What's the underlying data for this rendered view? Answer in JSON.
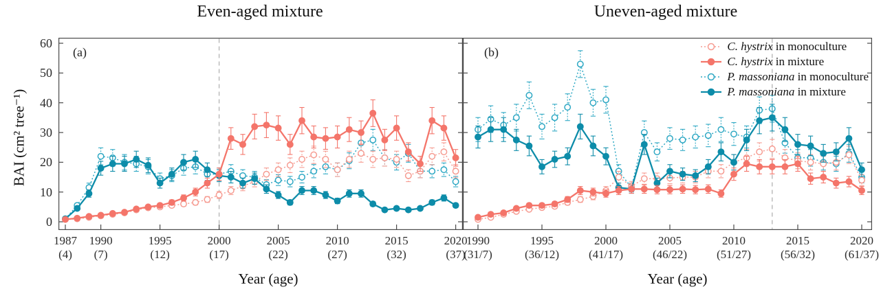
{
  "chart_data": {
    "type": "line",
    "title_y": "BAI (cm² tree⁻¹)",
    "x_axis_title": "Year (age)",
    "y_axis": {
      "label": "BAI (cm² tree⁻¹)",
      "ticks": [
        0,
        10,
        20,
        30,
        40,
        50,
        60
      ],
      "min": 0,
      "max": 60,
      "grid": false
    },
    "colors": {
      "ch_mono": "#f69c92",
      "ch_mix": "#f4756a",
      "pm_mono": "#2ea8c4",
      "pm_mix": "#0d8ca9",
      "dashed_line": "#b3b3b3",
      "frame": "#4a4a4a"
    },
    "legend": [
      {
        "key": "ch_mono",
        "species": "C. hystrix",
        "rest": " in monoculture",
        "marker": "open",
        "line": "dotted"
      },
      {
        "key": "ch_mix",
        "species": "C. hystrix",
        "rest": " in mixture",
        "marker": "filled",
        "line": "solid"
      },
      {
        "key": "pm_mono",
        "species": "P. massoniana",
        "rest": " in monoculture",
        "marker": "open",
        "line": "dotted"
      },
      {
        "key": "pm_mix",
        "species": "P. massoniana",
        "rest": " in mixture",
        "marker": "filled",
        "line": "solid"
      }
    ],
    "legend_position": "top-right",
    "panels": [
      {
        "id": "a",
        "letter": "(a)",
        "title": "Even-aged mixture",
        "dashed_line_year": 2000,
        "start_year": 1987,
        "x_ticks": [
          {
            "year": "1987",
            "age": "(4)"
          },
          {
            "year": "1990",
            "age": "(7)"
          },
          {
            "year": "1995",
            "age": "(12)"
          },
          {
            "year": "2000",
            "age": "(17)"
          },
          {
            "year": "2005",
            "age": "(22)"
          },
          {
            "year": "2010",
            "age": "(27)"
          },
          {
            "year": "2015",
            "age": "(32)"
          },
          {
            "year": "2020",
            "age": "(37)"
          }
        ],
        "series": [
          {
            "key": "pm_mono",
            "marker": "open",
            "line": "dotted",
            "values": [
              1.0,
              5.5,
              11.5,
              22.0,
              21.5,
              20.0,
              19.5,
              18.5,
              14.5,
              15.5,
              18.0,
              18.5,
              16.0,
              16.0,
              17.0,
              15.5,
              15.0,
              12.5,
              14.0,
              13.5,
              15.0,
              17.0,
              18.5,
              17.5,
              20.5,
              26.5,
              27.5,
              21.5,
              20.0,
              23.0,
              17.0,
              17.0,
              17.5,
              13.5
            ]
          },
          {
            "key": "ch_mono",
            "marker": "open",
            "line": "dotted",
            "values": [
              0.8,
              1.0,
              1.5,
              2.0,
              2.5,
              3.0,
              4.0,
              4.7,
              5.0,
              5.5,
              6.0,
              6.5,
              7.5,
              9.0,
              10.5,
              12.0,
              13.5,
              16.0,
              17.5,
              19.0,
              21.0,
              22.5,
              21.0,
              17.5,
              21.0,
              23.0,
              21.0,
              21.5,
              21.0,
              15.5,
              17.0,
              22.0,
              23.5,
              17.0
            ]
          },
          {
            "key": "pm_mix",
            "marker": "filled",
            "line": "solid",
            "values": [
              1.0,
              4.5,
              9.5,
              18.0,
              19.5,
              19.5,
              21.0,
              19.0,
              13.0,
              16.0,
              20.0,
              21.0,
              17.5,
              15.5,
              15.0,
              13.0,
              14.5,
              11.0,
              9.0,
              6.5,
              10.5,
              10.5,
              9.0,
              7.0,
              9.5,
              9.5,
              6.0,
              4.0,
              4.5,
              4.0,
              4.5,
              6.5,
              8.0,
              5.5
            ]
          },
          {
            "key": "ch_mix",
            "marker": "filled",
            "line": "solid",
            "values": [
              0.8,
              1.2,
              1.8,
              2.2,
              2.8,
              3.2,
              4.3,
              5.0,
              5.5,
              6.5,
              8.0,
              10.0,
              13.0,
              16.0,
              28.0,
              26.0,
              32.0,
              32.5,
              31.5,
              26.0,
              34.0,
              28.5,
              28.0,
              28.5,
              31.0,
              30.0,
              36.5,
              27.5,
              31.5,
              23.5,
              19.5,
              34.0,
              31.5,
              21.5
            ]
          }
        ]
      },
      {
        "id": "b",
        "letter": "(b)",
        "title": "Uneven-aged mixture",
        "dashed_line_year": 2013,
        "start_year": 1990,
        "x_ticks": [
          {
            "year": "1990",
            "age": "(31/7)"
          },
          {
            "year": "1995",
            "age": "(36/12)"
          },
          {
            "year": "2000",
            "age": "(41/17)"
          },
          {
            "year": "2005",
            "age": "(46/22)"
          },
          {
            "year": "2010",
            "age": "(51/27)"
          },
          {
            "year": "2015",
            "age": "(56/32)"
          },
          {
            "year": "2020",
            "age": "(61/37)"
          }
        ],
        "series": [
          {
            "key": "pm_mono",
            "marker": "open",
            "line": "dotted",
            "values": [
              31.0,
              34.5,
              32.5,
              35.0,
              42.5,
              32.0,
              35.0,
              38.5,
              53.0,
              40.0,
              41.0,
              17.0,
              11.5,
              30.0,
              23.5,
              28.0,
              27.5,
              28.5,
              29.0,
              31.0,
              29.5,
              28.5,
              37.5,
              38.0,
              26.5,
              21.5,
              21.5,
              20.0,
              19.5,
              23.0,
              15.0
            ]
          },
          {
            "key": "ch_mono",
            "marker": "open",
            "line": "dotted",
            "values": [
              0.8,
              1.5,
              2.5,
              3.5,
              4.2,
              4.8,
              5.2,
              6.5,
              7.5,
              8.5,
              10.5,
              15.0,
              12.0,
              14.5,
              14.5,
              14.7,
              15.0,
              15.0,
              17.0,
              17.0,
              20.0,
              21.5,
              23.5,
              24.5,
              21.5,
              20.5,
              20.0,
              19.5,
              20.0,
              22.5,
              14.0
            ]
          },
          {
            "key": "pm_mix",
            "marker": "filled",
            "line": "solid",
            "values": [
              28.5,
              31.0,
              31.0,
              27.5,
              25.5,
              18.5,
              21.0,
              22.0,
              32.0,
              25.5,
              22.0,
              11.5,
              11.0,
              26.0,
              13.0,
              17.0,
              16.0,
              15.5,
              18.5,
              23.5,
              20.0,
              27.5,
              34.0,
              35.0,
              31.0,
              26.0,
              25.5,
              23.0,
              23.5,
              28.0,
              17.5
            ]
          },
          {
            "key": "ch_mix",
            "marker": "filled",
            "line": "solid",
            "values": [
              1.5,
              2.5,
              3.0,
              4.5,
              5.5,
              5.5,
              6.0,
              7.5,
              10.5,
              10.0,
              9.5,
              10.5,
              11.0,
              11.0,
              10.8,
              10.8,
              11.0,
              10.8,
              11.0,
              9.5,
              16.0,
              19.5,
              18.5,
              18.5,
              18.5,
              19.5,
              14.5,
              15.0,
              13.0,
              13.5,
              10.5
            ]
          }
        ]
      }
    ]
  }
}
